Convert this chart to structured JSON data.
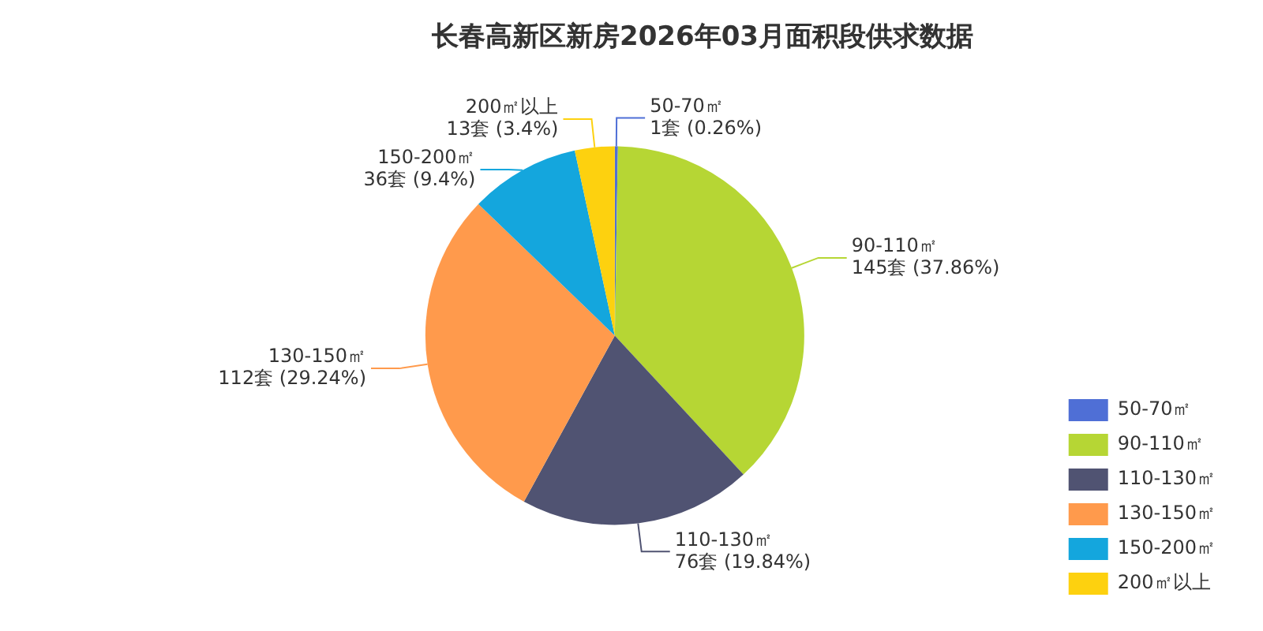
{
  "chart_data": {
    "type": "pie",
    "title": "长春高新区新房2026年03月面积段供求数据",
    "categories": [
      "50-70㎡",
      "90-110㎡",
      "110-130㎡",
      "130-150㎡",
      "150-200㎡",
      "200㎡以上"
    ],
    "values": [
      1,
      145,
      76,
      112,
      36,
      13
    ],
    "colors": [
      "#4f6fd6",
      "#b6d634",
      "#505372",
      "#ff9a4c",
      "#14a6dd",
      "#fdd10f"
    ],
    "value_labels": [
      "1套 (0.26%)",
      "145套 (37.86%)",
      "76套 (19.84%)",
      "112套 (29.24%)",
      "36套 (9.4%)",
      "13套 (3.4%)"
    ],
    "legend": "bottom right"
  }
}
